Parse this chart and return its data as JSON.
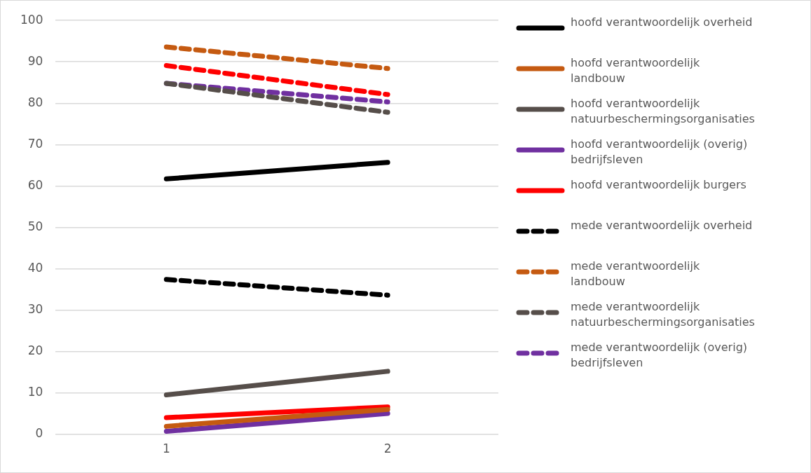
{
  "chart_data": {
    "type": "line",
    "categories": [
      "1",
      "2"
    ],
    "ylim": [
      0,
      100
    ],
    "yticks": [
      0,
      10,
      20,
      30,
      40,
      50,
      60,
      70,
      80,
      90,
      100
    ],
    "grid": "y",
    "legend": "right",
    "marker": "none",
    "series": [
      {
        "name": "hoofd verantwoordelijk overheid",
        "color": "#000000",
        "values": [
          61.7,
          65.7
        ],
        "line_style": "solid"
      },
      {
        "name": "hoofd verantwoordelijk landbouw",
        "color": "#c55a11",
        "values": [
          1.9,
          6
        ],
        "line_style": "solid"
      },
      {
        "name": "hoofd verantwoordelijk natuurbeschermingsorganisaties",
        "color": "#564e4a",
        "values": [
          9.5,
          15.2
        ],
        "line_style": "solid"
      },
      {
        "name": "hoofd verantwoordelijk (overig) bedrijfsleven",
        "color": "#7030a0",
        "values": [
          0.7,
          5
        ],
        "line_style": "solid"
      },
      {
        "name": "hoofd verantwoordelijk burgers",
        "color": "#ff0000",
        "values": [
          4,
          6.6
        ],
        "line_style": "solid"
      },
      {
        "name": "mede verantwoordelijk overheid",
        "color": "#000000",
        "values": [
          37.4,
          33.6
        ],
        "line_style": "dashed"
      },
      {
        "name": "mede verantwoordelijk landbouw",
        "color": "#c55a11",
        "values": [
          93.6,
          88.4
        ],
        "line_style": "dashed"
      },
      {
        "name": "mede verantwoordelijk natuurbeschermingsorganisaties",
        "color": "#564e4a",
        "values": [
          84.8,
          77.8
        ],
        "line_style": "dashed"
      },
      {
        "name": "mede verantwoordelijk (overig) bedrijfsleven",
        "color": "#7030a0",
        "values": [
          84.8,
          80.3
        ],
        "line_style": "dashed"
      },
      {
        "color": "#ff0000",
        "values": [
          89.1,
          82.1
        ],
        "line_style": "dashed"
      }
    ]
  }
}
